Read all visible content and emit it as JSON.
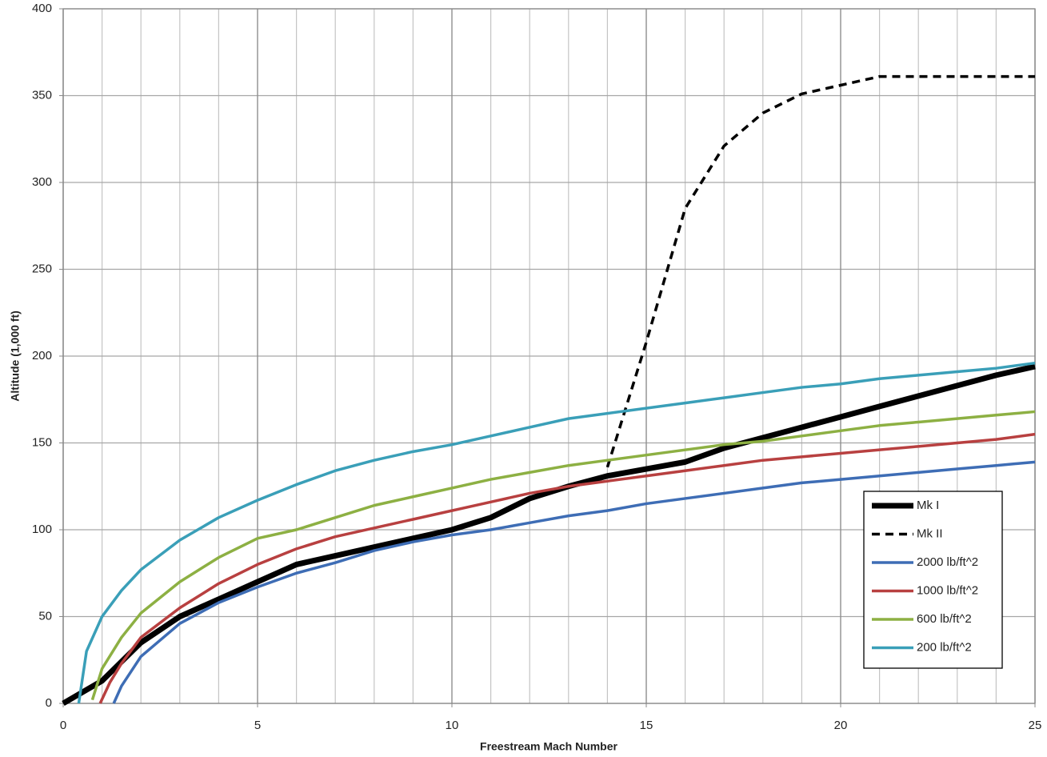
{
  "chart_data": {
    "type": "line",
    "xlabel": "Freestream Mach Number",
    "ylabel": "Altitude (1,000 ft)",
    "xlim": [
      0,
      25
    ],
    "xticks": [
      0,
      5,
      10,
      15,
      20,
      25
    ],
    "ylim": [
      0,
      400
    ],
    "yticks": [
      0,
      50,
      100,
      150,
      200,
      250,
      300,
      350,
      400
    ],
    "grid": true,
    "x_minor_grid_step": 1,
    "legend": "lower right",
    "series": [
      {
        "name": "Mk I",
        "color": "#000000",
        "width": 7,
        "dashed": false,
        "x": [
          0,
          1,
          2,
          3,
          4,
          5,
          6,
          7,
          8,
          9,
          10,
          11,
          12,
          13,
          14,
          15,
          16,
          17,
          18,
          19,
          20,
          21,
          22,
          23,
          24,
          25
        ],
        "values": [
          0,
          13,
          35,
          50,
          60,
          70,
          80,
          85,
          90,
          95,
          100,
          107,
          118,
          125,
          131,
          135,
          139,
          147,
          153,
          159,
          165,
          171,
          177,
          183,
          189,
          194
        ]
      },
      {
        "name": "Mk II",
        "color": "#000000",
        "width": 3.5,
        "dashed": true,
        "x": [
          14,
          15,
          16,
          17,
          18,
          19,
          20,
          21,
          22,
          23,
          24,
          25
        ],
        "values": [
          136,
          208,
          285,
          321,
          340,
          351,
          356,
          361,
          361,
          361,
          361,
          361
        ]
      },
      {
        "name": "2000 lb/ft^2",
        "color": "#3e6db5",
        "width": 3.5,
        "dashed": false,
        "x": [
          1.3,
          1.5,
          2,
          3,
          4,
          5,
          6,
          7,
          8,
          9,
          10,
          11,
          12,
          13,
          14,
          15,
          16,
          17,
          18,
          19,
          20,
          21,
          22,
          23,
          24,
          25
        ],
        "values": [
          0,
          10,
          27,
          46,
          58,
          67,
          75,
          81,
          88,
          93,
          97,
          100,
          104,
          108,
          111,
          115,
          118,
          121,
          124,
          127,
          129,
          131,
          133,
          135,
          137,
          139
        ]
      },
      {
        "name": "1000 lb/ft^2",
        "color": "#b84040",
        "width": 3.5,
        "dashed": false,
        "x": [
          0.95,
          1.2,
          1.5,
          2,
          3,
          4,
          5,
          6,
          7,
          8,
          9,
          10,
          11,
          12,
          13,
          14,
          15,
          16,
          17,
          18,
          19,
          20,
          21,
          22,
          23,
          24,
          25
        ],
        "values": [
          0,
          12,
          23,
          38,
          55,
          69,
          80,
          89,
          96,
          101,
          106,
          111,
          116,
          121,
          125,
          128,
          131,
          134,
          137,
          140,
          142,
          144,
          146,
          148,
          150,
          152,
          155
        ]
      },
      {
        "name": "600 lb/ft^2",
        "color": "#8db043",
        "width": 3.5,
        "dashed": false,
        "x": [
          0.75,
          1,
          1.5,
          2,
          3,
          4,
          5,
          6,
          7,
          8,
          9,
          10,
          11,
          12,
          13,
          14,
          15,
          16,
          17,
          18,
          19,
          20,
          21,
          22,
          23,
          24,
          25
        ],
        "values": [
          2,
          20,
          38,
          52,
          70,
          84,
          95,
          100,
          107,
          114,
          119,
          124,
          129,
          133,
          137,
          140,
          143,
          146,
          149,
          151,
          154,
          157,
          160,
          162,
          164,
          166,
          168
        ]
      },
      {
        "name": "200 lb/ft^2",
        "color": "#3a9fb8",
        "width": 3.5,
        "dashed": false,
        "x": [
          0.4,
          0.6,
          1,
          1.5,
          2,
          3,
          4,
          5,
          6,
          7,
          8,
          9,
          10,
          11,
          12,
          13,
          14,
          15,
          16,
          17,
          18,
          19,
          20,
          21,
          22,
          23,
          24,
          25
        ],
        "values": [
          0,
          30,
          50,
          65,
          77,
          94,
          107,
          117,
          126,
          134,
          140,
          145,
          149,
          154,
          159,
          164,
          167,
          170,
          173,
          176,
          179,
          182,
          184,
          187,
          189,
          191,
          193,
          196
        ]
      }
    ]
  }
}
